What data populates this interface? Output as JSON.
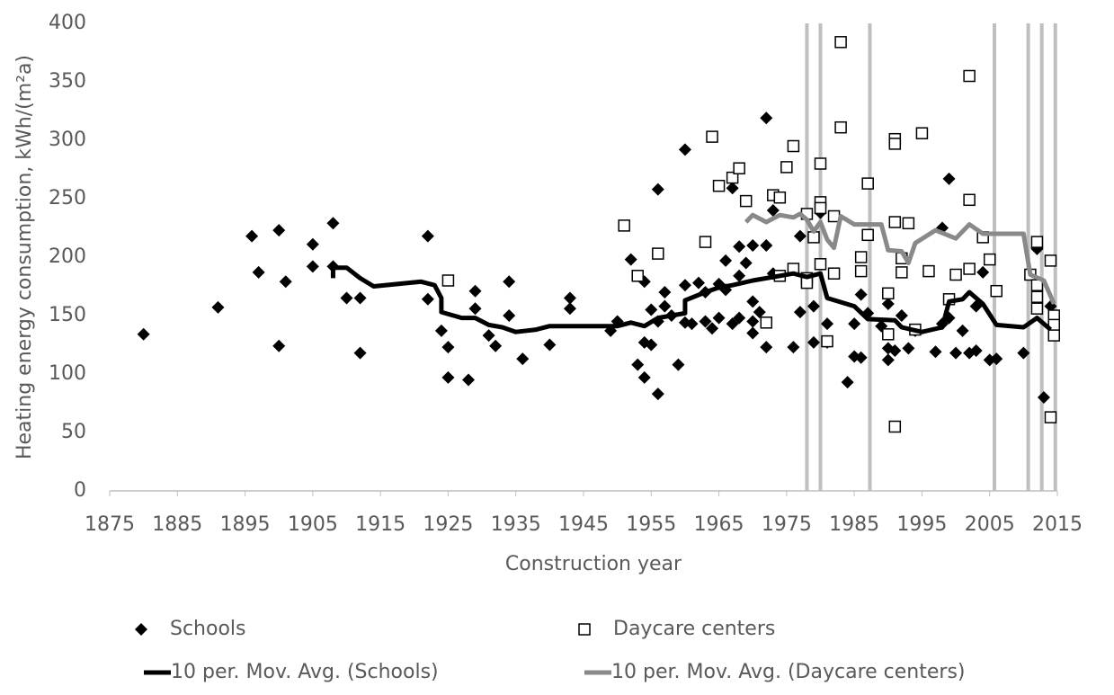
{
  "chart_data": {
    "type": "scatter",
    "xlabel": "Construction year",
    "ylabel": "Heating energy consumption, kWh/(m²a)",
    "xlim": [
      1875,
      2015
    ],
    "xticks": [
      1875,
      1885,
      1895,
      1905,
      1915,
      1925,
      1935,
      1945,
      1955,
      1965,
      1975,
      1985,
      1995,
      2005,
      2015
    ],
    "ylim": [
      0,
      400
    ],
    "yticks": [
      0,
      50,
      100,
      150,
      200,
      250,
      300,
      350,
      400
    ],
    "grid": false,
    "vertical_lines": {
      "color": "#bfbfbf",
      "x": [
        1978,
        1980,
        1987.3,
        2005.7,
        2010.7,
        2012.7,
        2014.7
      ]
    },
    "series": [
      {
        "name": "Schools",
        "kind": "points",
        "marker": "diamond",
        "color": "#000000",
        "x": [
          1880,
          1891,
          1896,
          1897,
          1900,
          1900,
          1901,
          1905,
          1905,
          1908,
          1908,
          1910,
          1912,
          1912,
          1922,
          1922,
          1924,
          1925,
          1925,
          1928,
          1929,
          1929,
          1931,
          1932,
          1934,
          1934,
          1936,
          1940,
          1943,
          1943,
          1949,
          1950,
          1952,
          1953,
          1954,
          1954,
          1954,
          1955,
          1955,
          1956,
          1956,
          1956,
          1957,
          1957,
          1958,
          1959,
          1960,
          1960,
          1960,
          1961,
          1962,
          1963,
          1963,
          1964,
          1965,
          1965,
          1966,
          1966,
          1967,
          1967,
          1968,
          1968,
          1968,
          1969,
          1970,
          1970,
          1970,
          1970,
          1971,
          1972,
          1972,
          1972,
          1973,
          1973,
          1976,
          1977,
          1977,
          1979,
          1979,
          1980,
          1981,
          1981,
          1984,
          1985,
          1985,
          1986,
          1986,
          1987,
          1989,
          1990,
          1990,
          1990,
          1991,
          1992,
          1993,
          1994,
          1997,
          1998,
          1998,
          1999,
          1999,
          2000,
          2001,
          2002,
          2003,
          2003,
          2004,
          2005,
          2006,
          2010,
          2012,
          2012,
          2013,
          2014
        ],
        "values": [
          134,
          157,
          218,
          187,
          223,
          124,
          179,
          211,
          192,
          229,
          192,
          165,
          165,
          118,
          218,
          164,
          137,
          123,
          97,
          95,
          171,
          156,
          133,
          124,
          179,
          150,
          113,
          125,
          165,
          156,
          137,
          145,
          198,
          108,
          97,
          179,
          127,
          155,
          125,
          258,
          83,
          145,
          170,
          158,
          150,
          108,
          176,
          292,
          144,
          143,
          178,
          145,
          170,
          139,
          148,
          177,
          197,
          172,
          259,
          143,
          148,
          209,
          184,
          195,
          162,
          135,
          145,
          210,
          153,
          319,
          210,
          123,
          240,
          186,
          123,
          218,
          153,
          158,
          127,
          238,
          143,
          127,
          93,
          115,
          143,
          168,
          114,
          152,
          141,
          112,
          160,
          122,
          120,
          150,
          122,
          137,
          119,
          225,
          143,
          267,
          148,
          118,
          137,
          118,
          120,
          158,
          187,
          112,
          113,
          118,
          208,
          207,
          80,
          158
        ]
      },
      {
        "name": "Daycare centers",
        "kind": "points",
        "marker": "square",
        "color": "#000000",
        "x": [
          1925,
          1951,
          1953,
          1956,
          1963,
          1964,
          1965,
          1967,
          1968,
          1969,
          1972,
          1973,
          1974,
          1974,
          1975,
          1976,
          1976,
          1978,
          1978,
          1978,
          1979,
          1980,
          1980,
          1980,
          1980,
          1981,
          1982,
          1982,
          1983,
          1983,
          1986,
          1986,
          1987,
          1987,
          1990,
          1990,
          1991,
          1991,
          1991,
          1991,
          1992,
          1992,
          1993,
          1994,
          1995,
          1996,
          1999,
          2000,
          2002,
          2002,
          2002,
          2004,
          2005,
          2006,
          2011,
          2012,
          2012,
          2012,
          2012,
          2014,
          2014,
          2014.5,
          2014.5,
          2014.5
        ],
        "values": [
          180,
          227,
          184,
          203,
          213,
          303,
          261,
          268,
          276,
          248,
          144,
          253,
          251,
          184,
          277,
          295,
          190,
          237,
          182,
          178,
          217,
          247,
          280,
          194,
          242,
          128,
          235,
          186,
          384,
          311,
          200,
          188,
          263,
          219,
          169,
          134,
          301,
          297,
          230,
          55,
          187,
          199,
          229,
          138,
          306,
          188,
          164,
          185,
          190,
          249,
          355,
          217,
          198,
          171,
          185,
          213,
          176,
          166,
          156,
          197,
          63,
          150,
          142,
          133
        ]
      },
      {
        "name": "10 per. Mov. Avg. (Schools)",
        "kind": "line",
        "color": "#000000",
        "x": [
          1908,
          1908,
          1910,
          1912,
          1914,
          1921,
          1923,
          1924,
          1924,
          1927,
          1929,
          1931,
          1933,
          1935,
          1938,
          1940,
          1950,
          1952,
          1954,
          1956,
          1958,
          1960,
          1960,
          1963,
          1965,
          1967,
          1970,
          1973,
          1976,
          1978,
          1980,
          1981,
          1985,
          1987,
          1991,
          1992,
          1995,
          1998,
          1999,
          2001,
          2002,
          2004,
          2006,
          2010,
          2012,
          2014
        ],
        "values": [
          182,
          191,
          191,
          182,
          175,
          179,
          176,
          165,
          153,
          148,
          148,
          142,
          140,
          136,
          138,
          141,
          141,
          144,
          141,
          148,
          150,
          152,
          163,
          170,
          174,
          176,
          180,
          183,
          186,
          183,
          186,
          165,
          158,
          147,
          146,
          140,
          136,
          140,
          162,
          164,
          170,
          160,
          142,
          140,
          148,
          138
        ]
      },
      {
        "name": "10 per. Mov. Avg. (Daycare centers)",
        "kind": "line",
        "color": "#898989",
        "x": [
          1969,
          1970,
          1972,
          1974,
          1976,
          1977,
          1978,
          1979,
          1980,
          1981,
          1982,
          1983,
          1985,
          1989,
          1990,
          1992,
          1993,
          1994,
          1997,
          2000,
          2002,
          2004,
          2010,
          2011,
          2013,
          2014.5
        ],
        "values": [
          230,
          236,
          230,
          236,
          234,
          237,
          232,
          222,
          230,
          215,
          208,
          235,
          228,
          228,
          206,
          205,
          195,
          212,
          223,
          216,
          228,
          220,
          220,
          185,
          180,
          160
        ]
      }
    ]
  }
}
